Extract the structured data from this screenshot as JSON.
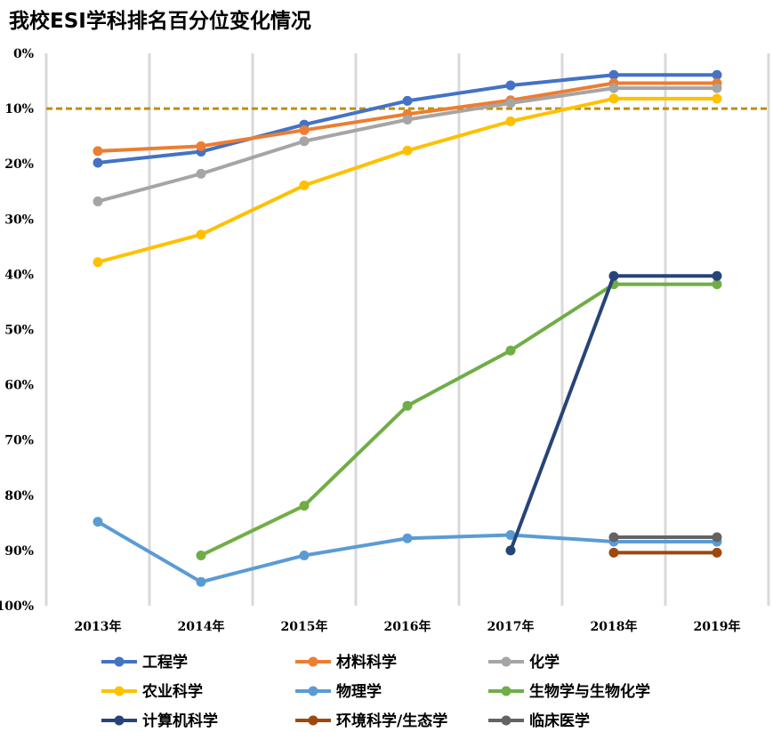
{
  "chart_data": {
    "type": "line",
    "title": "我校ESI学科排名百分位变化情况",
    "categories": [
      "2013年",
      "2014年",
      "2015年",
      "2016年",
      "2017年",
      "2018年",
      "2019年"
    ],
    "y_ticks": [
      "0%",
      "10%",
      "20%",
      "30%",
      "40%",
      "50%",
      "60%",
      "70%",
      "80%",
      "90%",
      "100%"
    ],
    "ylim": [
      0,
      100
    ],
    "y_reversed": true,
    "grid": "vertical",
    "reference_line": {
      "value": 10,
      "style": "dashed",
      "color": "#BF9000"
    },
    "legend_position": "bottom",
    "series": [
      {
        "name": "工程学",
        "color": "#4472C4",
        "values": [
          19.8,
          17.8,
          12.9,
          8.6,
          5.8,
          3.9,
          3.9
        ]
      },
      {
        "name": "材料科学",
        "color": "#ED7D31",
        "values": [
          17.7,
          16.8,
          13.9,
          11.0,
          8.5,
          5.4,
          5.4
        ]
      },
      {
        "name": "化学",
        "color": "#A5A5A5",
        "values": [
          26.8,
          21.8,
          15.9,
          12.0,
          9.0,
          6.3,
          6.3
        ]
      },
      {
        "name": "农业科学",
        "color": "#FFC000",
        "values": [
          37.8,
          32.8,
          23.9,
          17.6,
          12.3,
          8.2,
          8.2
        ]
      },
      {
        "name": "物理学",
        "color": "#5B9BD5",
        "values": [
          84.8,
          95.7,
          90.9,
          87.8,
          87.2,
          88.4,
          88.4
        ]
      },
      {
        "name": "生物学与生物化学",
        "color": "#70AD47",
        "values": [
          null,
          90.9,
          81.9,
          63.8,
          53.8,
          41.8,
          41.8
        ]
      },
      {
        "name": "计算机科学",
        "color": "#264478",
        "values": [
          null,
          null,
          null,
          null,
          90.0,
          40.3,
          40.3
        ]
      },
      {
        "name": "环境科学/生态学",
        "color": "#9E480E",
        "values": [
          null,
          null,
          null,
          null,
          null,
          90.4,
          90.4
        ]
      },
      {
        "name": "临床医学",
        "color": "#636363",
        "values": [
          null,
          null,
          null,
          null,
          null,
          87.6,
          87.6
        ]
      }
    ]
  }
}
